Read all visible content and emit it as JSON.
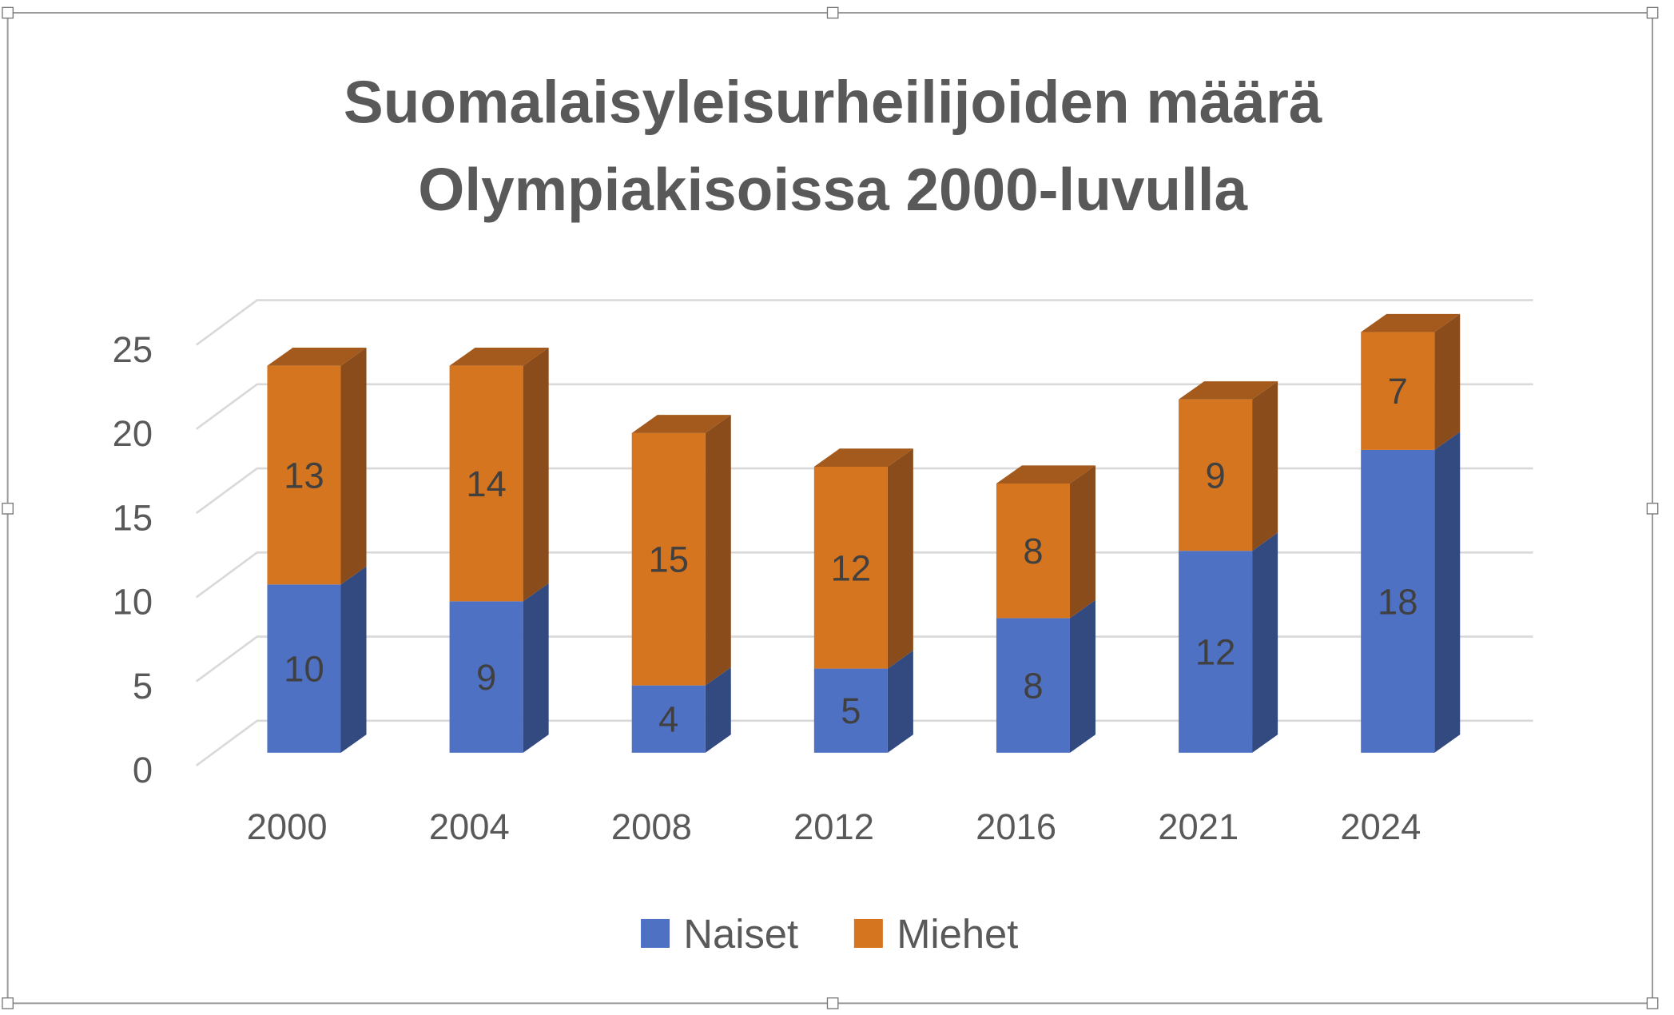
{
  "chart_data": {
    "type": "bar",
    "stacked": true,
    "three_d": true,
    "title": [
      "Suomalaisyleisurheilijoiden määrä",
      "Olympiakisoissa 2000-luvulla"
    ],
    "categories": [
      "2000",
      "2004",
      "2008",
      "2012",
      "2016",
      "2021",
      "2024"
    ],
    "series": [
      {
        "name": "Naiset",
        "values": [
          10,
          9,
          4,
          5,
          8,
          12,
          18
        ],
        "color": "#4F71C4",
        "side": "#334A80"
      },
      {
        "name": "Miehet",
        "values": [
          13,
          14,
          15,
          12,
          8,
          9,
          7
        ],
        "color": "#D5751F",
        "side": "#8A4C1B",
        "top": "#A45A1C"
      }
    ],
    "yticks": [
      "0",
      "5",
      "10",
      "15",
      "20",
      "25"
    ],
    "ylim": [
      0,
      25
    ],
    "grid": true,
    "legend_position": "bottom",
    "xlabel": "",
    "ylabel": ""
  }
}
